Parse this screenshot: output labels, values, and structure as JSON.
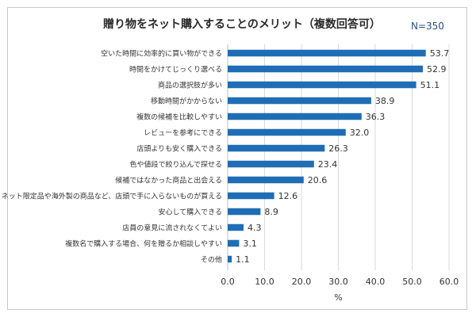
{
  "chart_data": {
    "type": "bar",
    "orientation": "horizontal",
    "title": "贈り物をネット購入することのメリット（複数回答可）",
    "note": "N=350",
    "xlabel": "%",
    "ylabel": "",
    "xlim": [
      0,
      60
    ],
    "xticks": [
      "0.0",
      "10.0",
      "20.0",
      "30.0",
      "40.0",
      "50.0",
      "60.0"
    ],
    "grid": true,
    "bar_color": "#1f6db5",
    "categories": [
      "空いた時間に効率的に買い物ができる",
      "時間をかけてじっくり選べる",
      "商品の選択肢が多い",
      "移動時間がかからない",
      "複数の候補を比較しやすい",
      "レビューを参考にできる",
      "店頭よりも安く購入できる",
      "色や値段で絞り込んで探せる",
      "候補ではなかった商品と出会える",
      "ネット限定品や海外製の商品など、店頭で手に入らないものが買える",
      "安心して購入できる",
      "店員の意見に流されなくてよい",
      "複数名で購入する場合、何を贈るか相談しやすい",
      "その他"
    ],
    "values": [
      53.7,
      52.9,
      51.1,
      38.9,
      36.3,
      32.0,
      26.3,
      23.4,
      20.6,
      12.6,
      8.9,
      4.3,
      3.1,
      1.1
    ],
    "value_labels": [
      "53.7",
      "52.9",
      "51.1",
      "38.9",
      "36.3",
      "32.0",
      "26.3",
      "23.4",
      "20.6",
      "12.6",
      "8.9",
      "4.3",
      "3.1",
      "1.1"
    ]
  }
}
